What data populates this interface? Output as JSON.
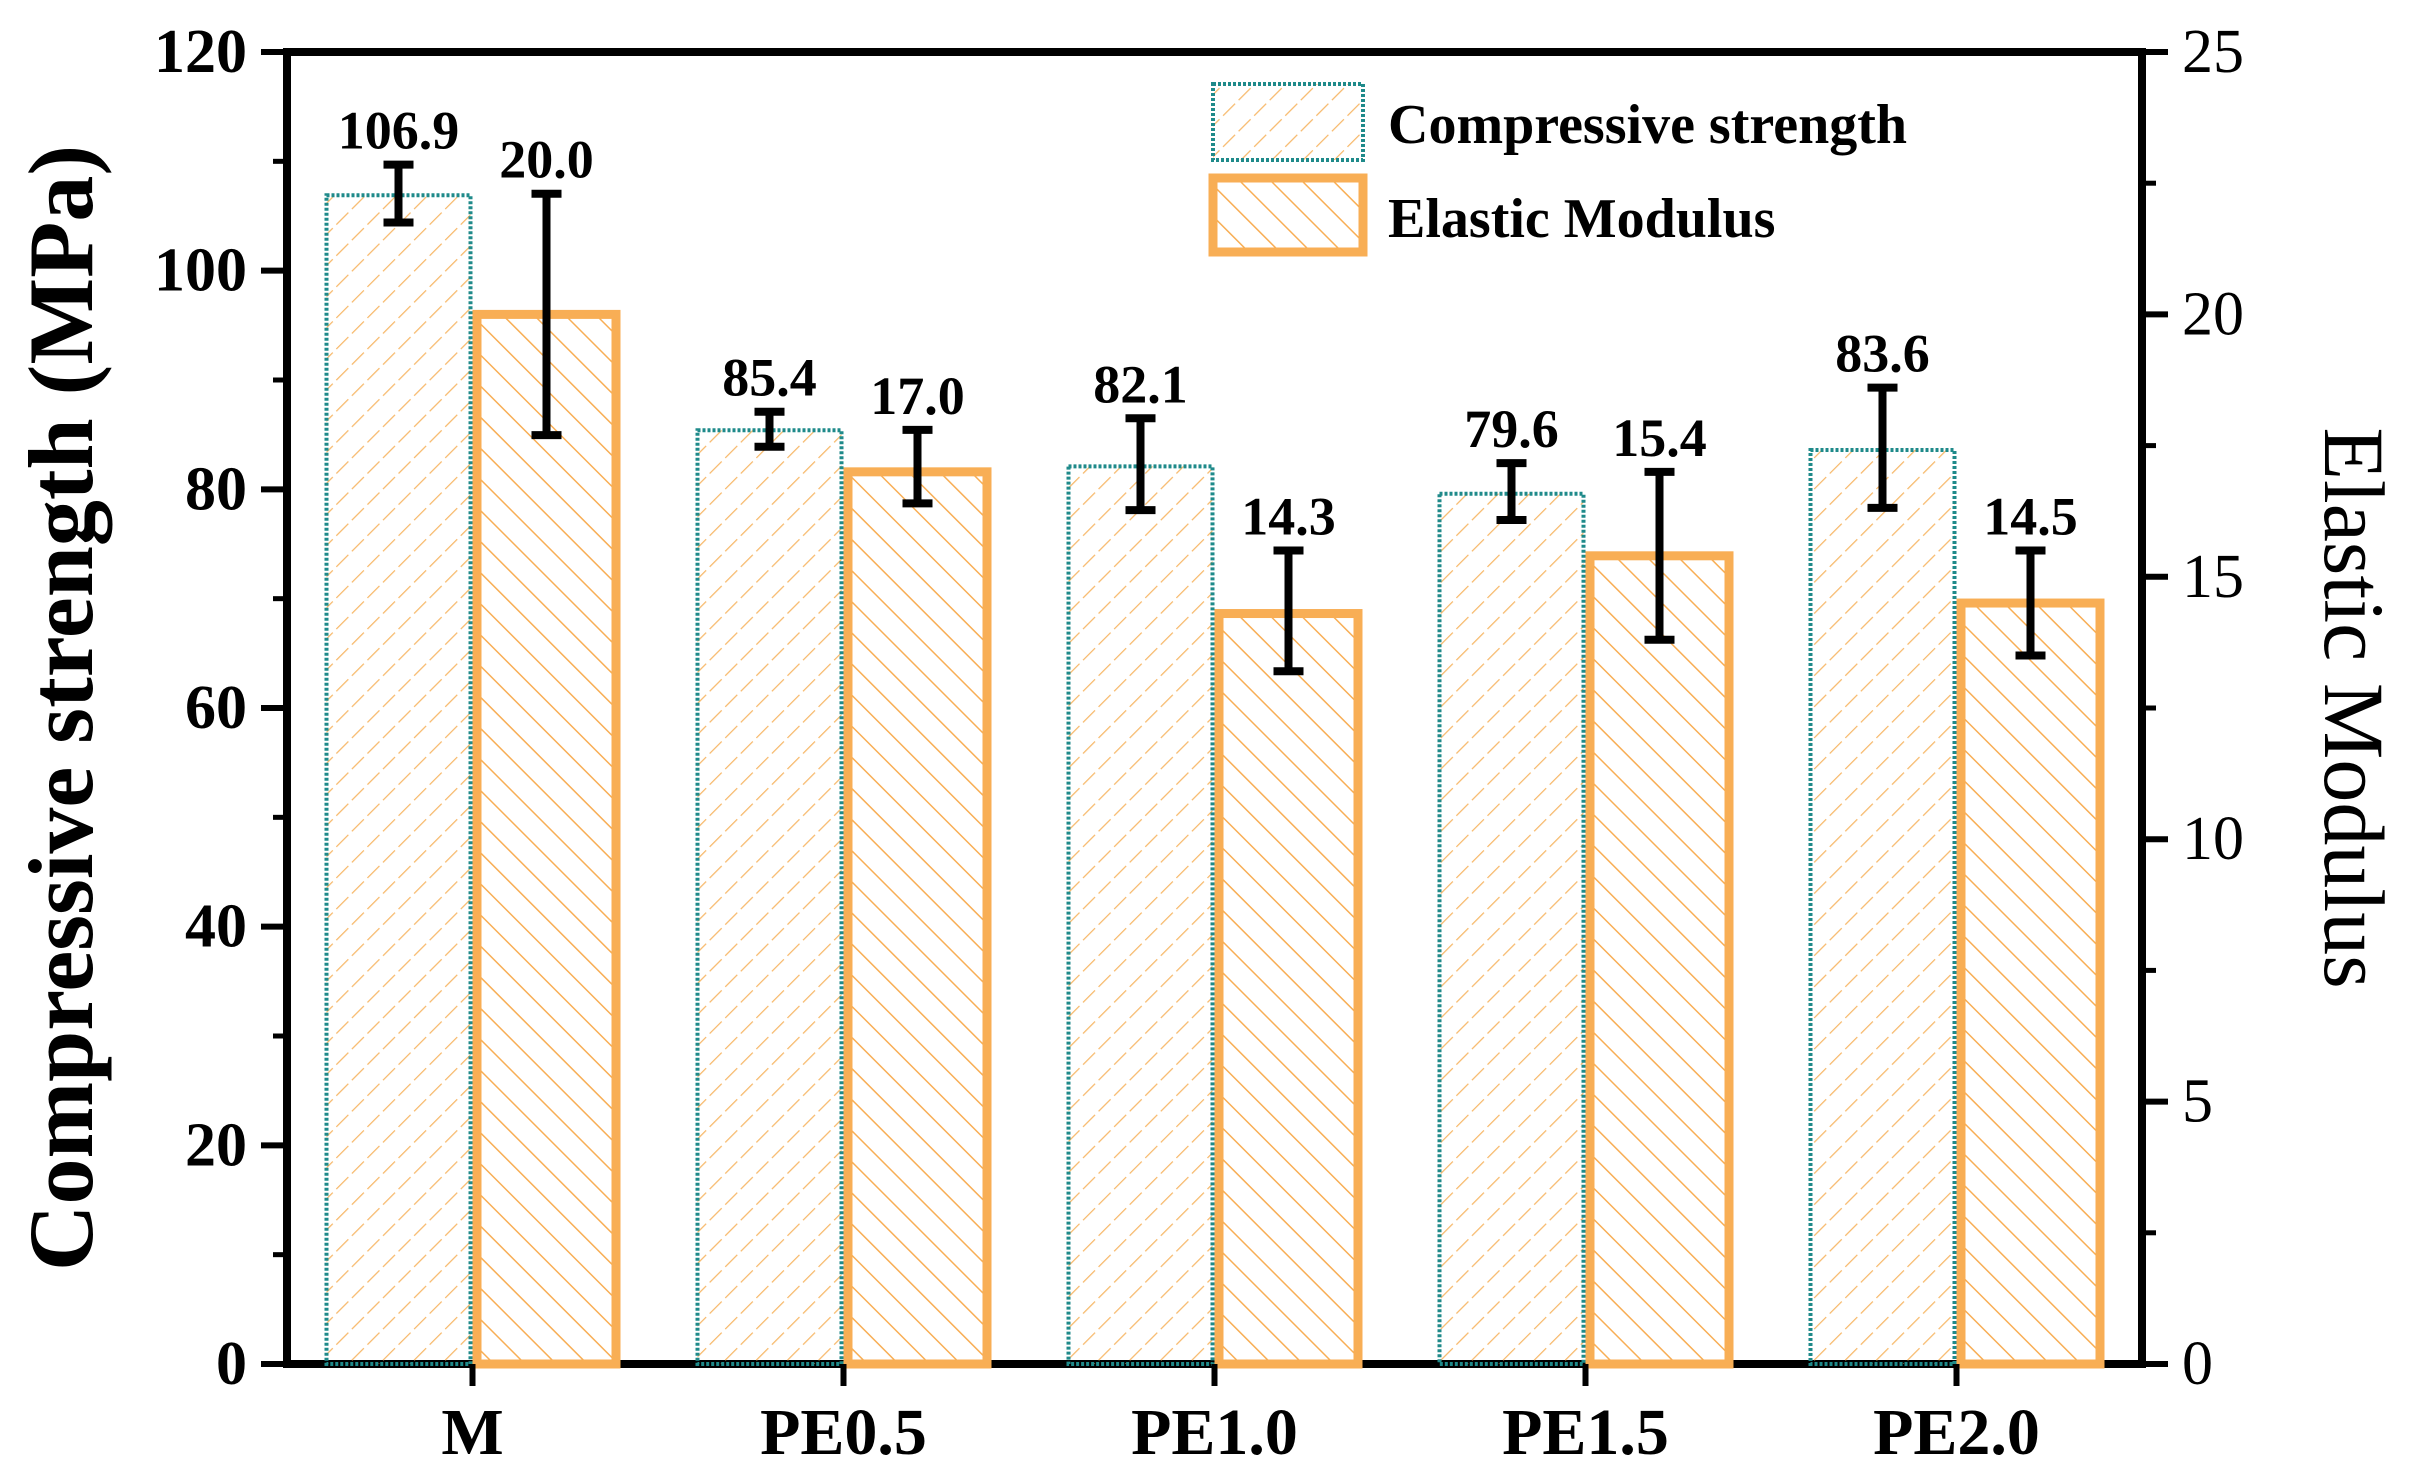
{
  "chart_data": {
    "type": "bar",
    "categories": [
      "M",
      "PE0.5",
      "PE1.0",
      "PE1.5",
      "PE2.0"
    ],
    "series": [
      {
        "name": "Compressive strength",
        "axis": "left",
        "values": [
          106.9,
          85.4,
          82.1,
          79.6,
          83.6
        ],
        "labels": [
          "106.9",
          "85.4",
          "82.1",
          "79.6",
          "83.6"
        ],
        "error_low": [
          104.4,
          83.9,
          78.1,
          77.2,
          78.3
        ],
        "error_high": [
          109.7,
          87.1,
          86.5,
          82.4,
          89.3
        ],
        "edge_color": "#1f8a8a",
        "hatch_color": "#f7b96b"
      },
      {
        "name": "Elastic Modulus",
        "axis": "right",
        "values": [
          20.0,
          17.0,
          14.3,
          15.4,
          14.5
        ],
        "labels": [
          "20.0",
          "17.0",
          "14.3",
          "15.4",
          "14.5"
        ],
        "error_low": [
          17.7,
          16.4,
          13.2,
          13.8,
          13.5
        ],
        "error_high": [
          22.3,
          17.8,
          15.5,
          17.0,
          15.5
        ],
        "edge_color": "#f8ae55",
        "hatch_color": "#f8ae55"
      }
    ],
    "ylabel": "Compressive strength (MPa)",
    "y2label": "Elastic Modulus",
    "xlabel": "",
    "ylim": [
      0,
      120
    ],
    "y2lim": [
      0,
      25
    ],
    "yticks": [
      "0",
      "20",
      "40",
      "60",
      "80",
      "100",
      "120"
    ],
    "y2ticks": [
      "0",
      "5",
      "10",
      "15",
      "20",
      "25"
    ],
    "legend": {
      "position": "top-right",
      "entries": [
        "Compressive strength",
        "Elastic Modulus"
      ]
    },
    "error_bar_color": "#000000"
  }
}
